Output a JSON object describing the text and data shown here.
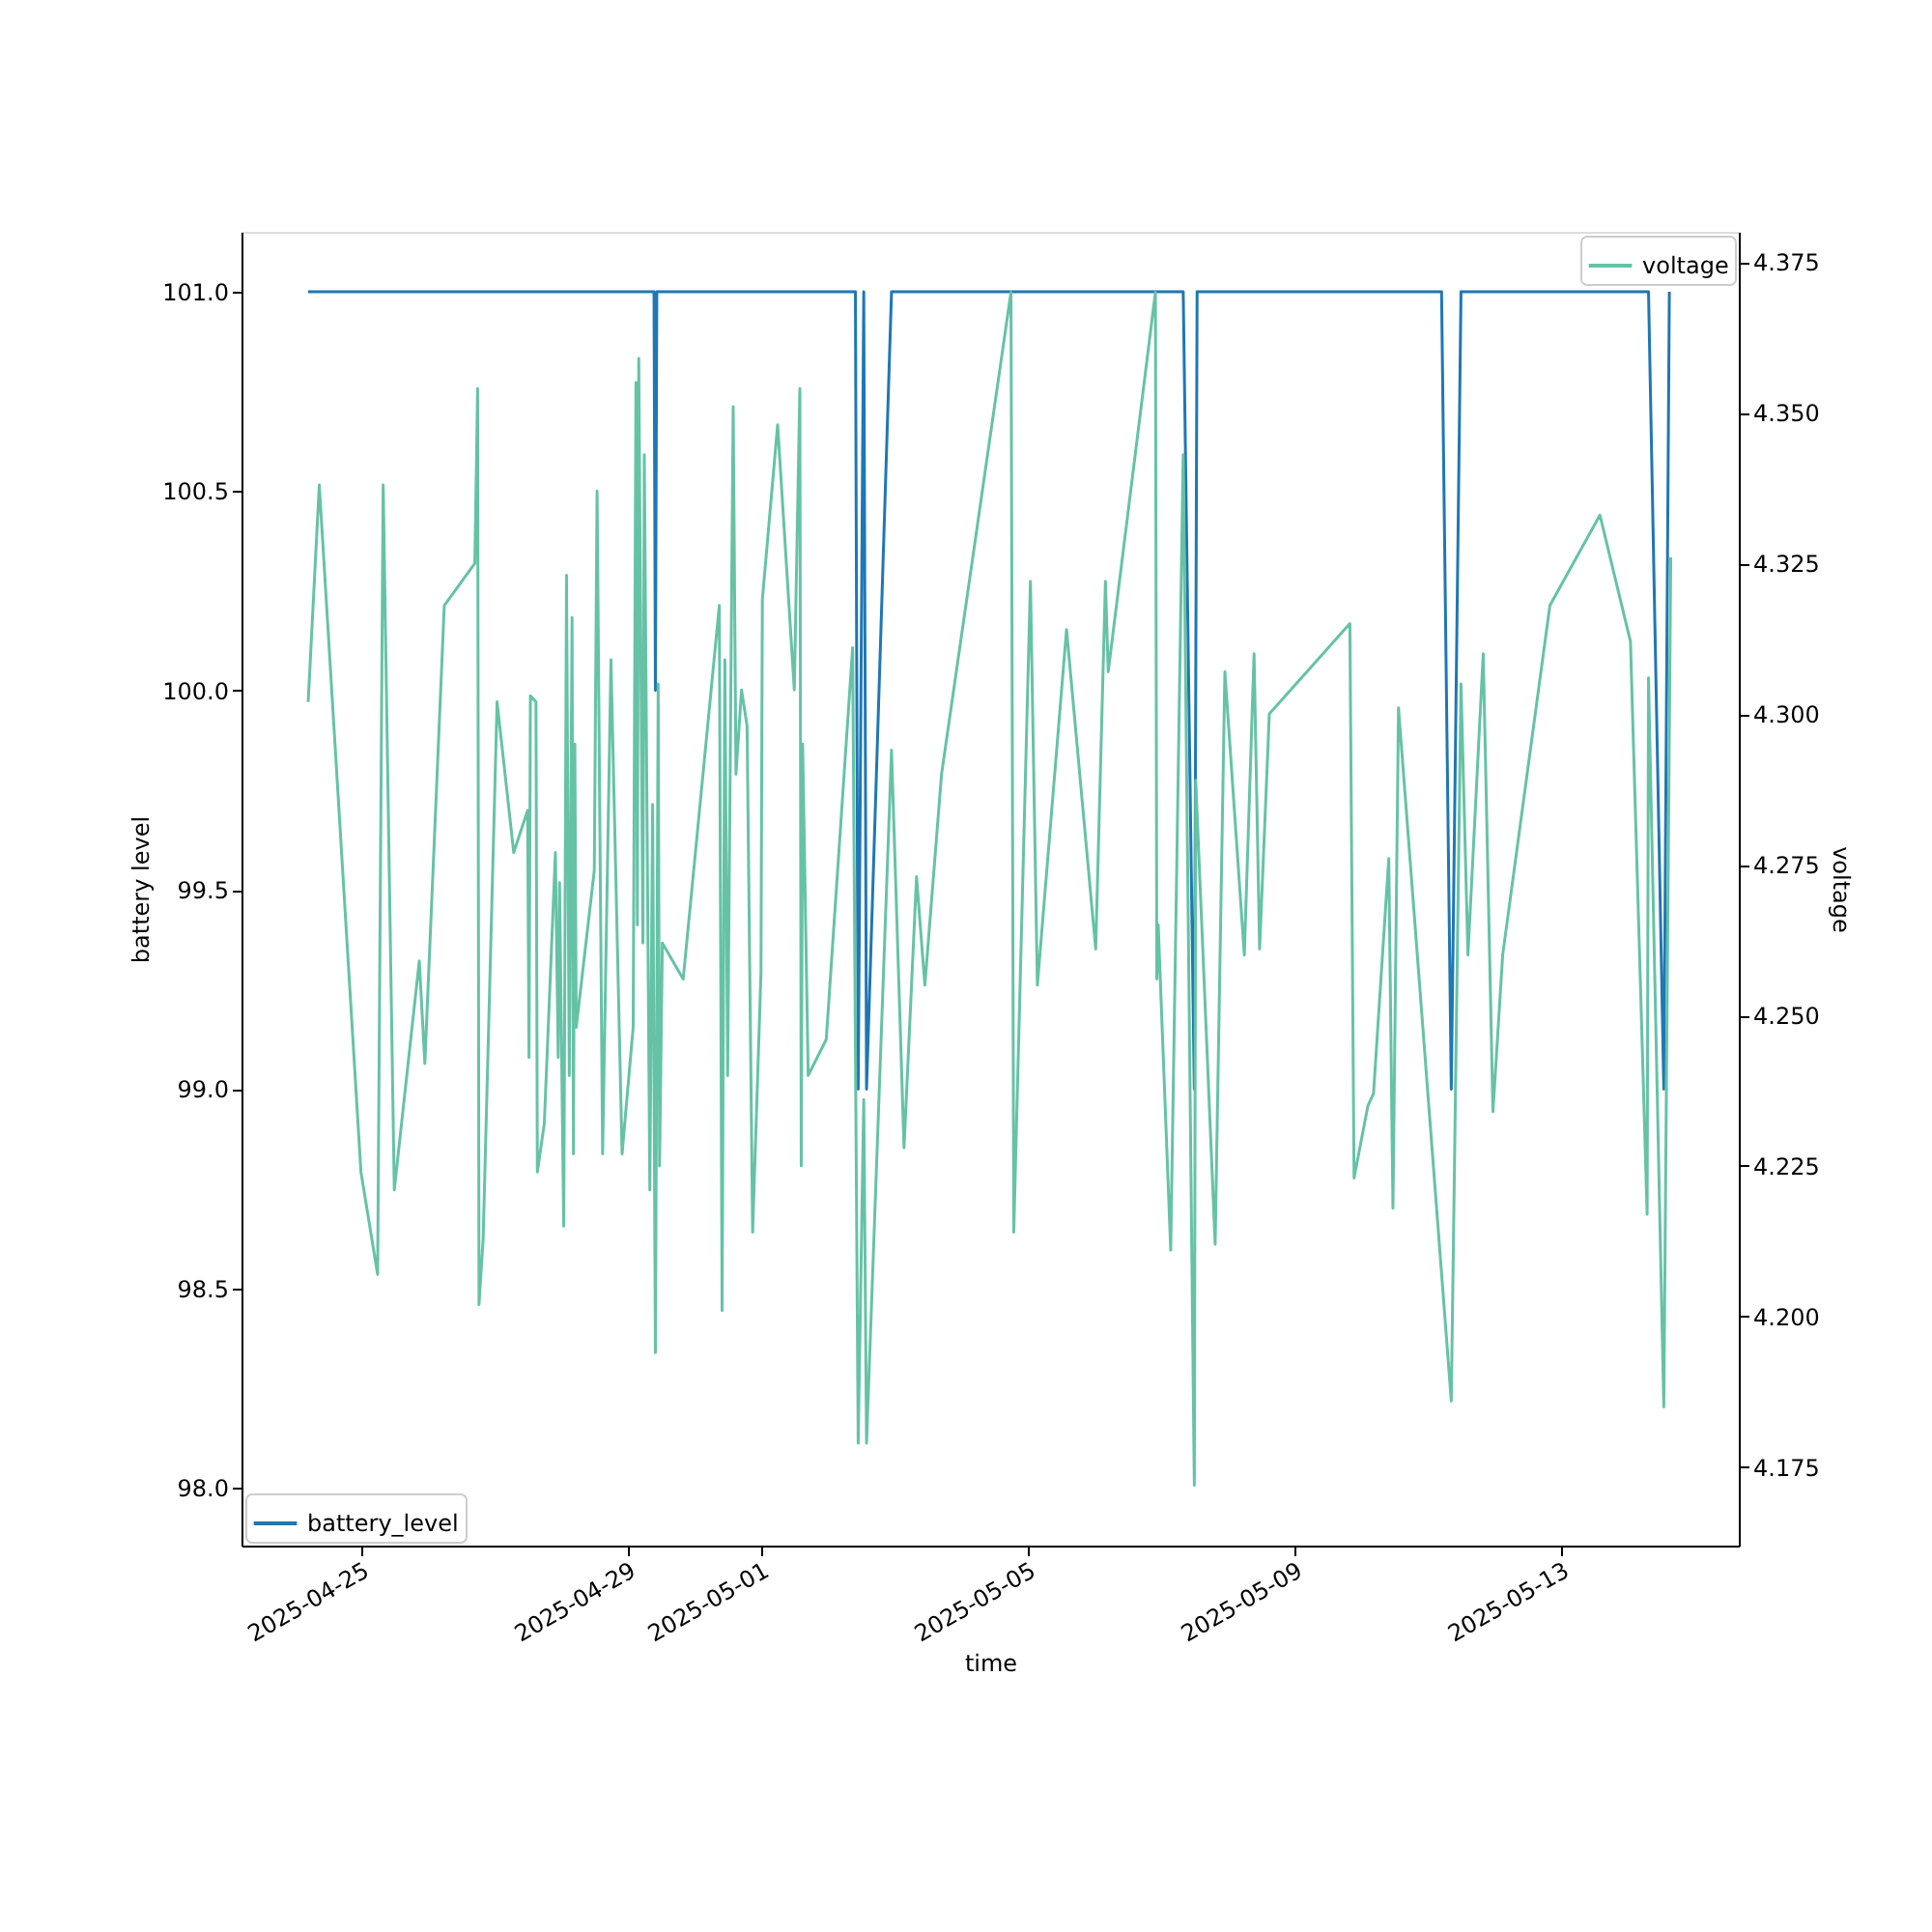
{
  "chart_data": {
    "type": "line",
    "xlabel": "time",
    "ylabel": "battery level",
    "y2label": "voltage",
    "xlim": [
      "2025-04-23T05:00",
      "2025-05-15T16:00"
    ],
    "xticks": [
      "2025-04-25",
      "2025-04-29",
      "2025-05-01",
      "2025-05-05",
      "2025-05-09",
      "2025-05-13"
    ],
    "ylim": [
      97.855,
      101.15
    ],
    "yticks": [
      {
        "value": 98,
        "label": "98.0"
      },
      {
        "value": 98.5,
        "label": "98.5"
      },
      {
        "value": 99,
        "label": "99.0"
      },
      {
        "value": 99.5,
        "label": "99.5"
      },
      {
        "value": 100,
        "label": "100.0"
      },
      {
        "value": 100.5,
        "label": "100.5"
      },
      {
        "value": 101,
        "label": "101.0"
      }
    ],
    "y2lim": [
      4.162,
      4.38
    ],
    "y2ticks": [
      {
        "value": 4.175,
        "label": "4.175"
      },
      {
        "value": 4.2,
        "label": "4.200"
      },
      {
        "value": 4.225,
        "label": "4.225"
      },
      {
        "value": 4.25,
        "label": "4.250"
      },
      {
        "value": 4.275,
        "label": "4.275"
      },
      {
        "value": 4.3,
        "label": "4.300"
      },
      {
        "value": 4.325,
        "label": "4.325"
      },
      {
        "value": 4.35,
        "label": "4.350"
      },
      {
        "value": 4.375,
        "label": "4.375"
      }
    ],
    "grid": false,
    "line_style": "solid",
    "marker": "none",
    "legend": [
      "bottom left",
      "top right"
    ],
    "series": [
      {
        "name": "battery_level",
        "color": "#1f77b4",
        "x": [
          "2025-04-24T05:00",
          "2025-04-29T09:30",
          "2025-04-29T10:00",
          "2025-04-29T10:30",
          "2025-05-02T10:00",
          "2025-05-02T11:00",
          "2025-05-02T13:00",
          "2025-05-02T14:00",
          "2025-05-02T23:00",
          "2025-05-07T08:00",
          "2025-05-07T12:00",
          "2025-05-07T13:00",
          "2025-05-11T05:00",
          "2025-05-11T08:30",
          "2025-05-11T12:00",
          "2025-05-14T07:30",
          "2025-05-14T13:00",
          "2025-05-14T15:00"
        ],
        "values": [
          101,
          101,
          100,
          101,
          101,
          99,
          101,
          99,
          101,
          101,
          99,
          101,
          101,
          99,
          101,
          101,
          99,
          101
        ]
      },
      {
        "name": "voltage",
        "color": "#66c2a5",
        "axis": "y2",
        "x": [
          "2025-04-24T05:00",
          "2025-04-24T09:00",
          "2025-04-25T00:00",
          "2025-04-25T06:00",
          "2025-04-25T08:00",
          "2025-04-25T12:00",
          "2025-04-25T21:00",
          "2025-04-25T23:00",
          "2025-04-26T06:00",
          "2025-04-26T17:00",
          "2025-04-26T18:00",
          "2025-04-26T18:30",
          "2025-04-26T20:00",
          "2025-04-27T01:00",
          "2025-04-27T07:00",
          "2025-04-27T12:00",
          "2025-04-27T12:30",
          "2025-04-27T13:00",
          "2025-04-27T15:00",
          "2025-04-27T15:30",
          "2025-04-27T18:00",
          "2025-04-27T22:00",
          "2025-04-27T23:00",
          "2025-04-27T23:30",
          "2025-04-28T01:00",
          "2025-04-28T02:00",
          "2025-04-28T03:00",
          "2025-04-28T04:00",
          "2025-04-28T04:30",
          "2025-04-28T05:00",
          "2025-04-28T05:30",
          "2025-04-28T12:00",
          "2025-04-28T13:00",
          "2025-04-28T15:00",
          "2025-04-28T18:00",
          "2025-04-28T22:00",
          "2025-04-29T02:00",
          "2025-04-29T03:00",
          "2025-04-29T03:30",
          "2025-04-29T04:00",
          "2025-04-29T05:30",
          "2025-04-29T06:00",
          "2025-04-29T08:00",
          "2025-04-29T09:00",
          "2025-04-29T10:00",
          "2025-04-29T11:00",
          "2025-04-29T11:30",
          "2025-04-29T12:30",
          "2025-04-29T20:00",
          "2025-04-30T09:00",
          "2025-04-30T10:00",
          "2025-04-30T11:00",
          "2025-04-30T12:00",
          "2025-04-30T14:00",
          "2025-04-30T15:00",
          "2025-04-30T17:00",
          "2025-04-30T19:00",
          "2025-04-30T21:00",
          "2025-05-01T00:00",
          "2025-05-01T00:30",
          "2025-05-01T06:00",
          "2025-05-01T12:00",
          "2025-05-01T14:00",
          "2025-05-01T14:30",
          "2025-05-01T15:00",
          "2025-05-01T17:00",
          "2025-05-01T23:30",
          "2025-05-02T09:00",
          "2025-05-02T11:00",
          "2025-05-02T13:00",
          "2025-05-02T14:00",
          "2025-05-02T23:00",
          "2025-05-03T03:30",
          "2025-05-03T08:00",
          "2025-05-03T11:00",
          "2025-05-03T17:00",
          "2025-05-04T18:00",
          "2025-05-04T19:00",
          "2025-05-05T01:00",
          "2025-05-05T03:30",
          "2025-05-05T14:00",
          "2025-05-06T00:30",
          "2025-05-06T04:00",
          "2025-05-06T05:00",
          "2025-05-06T22:00",
          "2025-05-06T22:30",
          "2025-05-06T23:00",
          "2025-05-07T03:30",
          "2025-05-07T08:00",
          "2025-05-07T12:00",
          "2025-05-07T12:30",
          "2025-05-07T19:30",
          "2025-05-07T23:00",
          "2025-05-08T06:00",
          "2025-05-08T09:30",
          "2025-05-08T11:30",
          "2025-05-08T15:00",
          "2025-05-09T20:00",
          "2025-05-09T21:30",
          "2025-05-10T02:30",
          "2025-05-10T04:30",
          "2025-05-10T10:00",
          "2025-05-10T11:30",
          "2025-05-10T13:30",
          "2025-05-11T08:30",
          "2025-05-11T12:00",
          "2025-05-11T14:30",
          "2025-05-11T20:00",
          "2025-05-11T23:30",
          "2025-05-12T03:00",
          "2025-05-12T20:00",
          "2025-05-13T14:00",
          "2025-05-14T01:00",
          "2025-05-14T07:00",
          "2025-05-14T07:30",
          "2025-05-14T13:00",
          "2025-05-14T15:30"
        ],
        "values": [
          4.302,
          4.338,
          4.224,
          4.207,
          4.338,
          4.221,
          4.259,
          4.242,
          4.318,
          4.325,
          4.354,
          4.202,
          4.213,
          4.302,
          4.277,
          4.284,
          4.243,
          4.303,
          4.302,
          4.224,
          4.232,
          4.277,
          4.243,
          4.272,
          4.215,
          4.323,
          4.24,
          4.316,
          4.227,
          4.295,
          4.248,
          4.274,
          4.337,
          4.227,
          4.309,
          4.227,
          4.248,
          4.355,
          4.265,
          4.359,
          4.262,
          4.343,
          4.221,
          4.285,
          4.194,
          4.305,
          4.225,
          4.262,
          4.256,
          4.318,
          4.201,
          4.309,
          4.24,
          4.351,
          4.29,
          4.304,
          4.298,
          4.214,
          4.257,
          4.319,
          4.348,
          4.304,
          4.354,
          4.225,
          4.295,
          4.24,
          4.246,
          4.311,
          4.179,
          4.236,
          4.179,
          4.294,
          4.228,
          4.273,
          4.255,
          4.29,
          4.37,
          4.214,
          4.322,
          4.255,
          4.314,
          4.261,
          4.322,
          4.307,
          4.37,
          4.256,
          4.265,
          4.211,
          4.343,
          4.172,
          4.289,
          4.212,
          4.307,
          4.26,
          4.31,
          4.261,
          4.3,
          4.315,
          4.223,
          4.235,
          4.237,
          4.276,
          4.218,
          4.301,
          4.186,
          4.305,
          4.26,
          4.31,
          4.234,
          4.26,
          4.318,
          4.333,
          4.312,
          4.217,
          4.306,
          4.185,
          4.326
        ]
      }
    ]
  }
}
